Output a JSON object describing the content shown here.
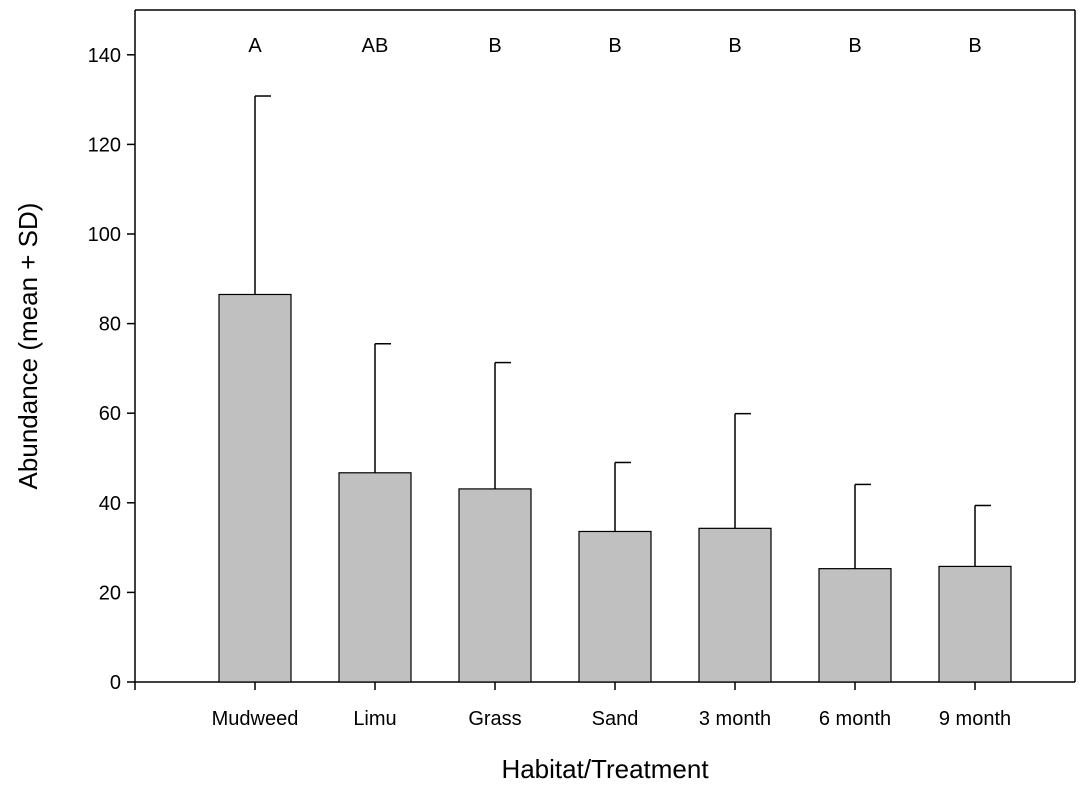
{
  "chart_data": {
    "type": "bar",
    "title": "",
    "xlabel": "Habitat/Treatment",
    "ylabel": "Abundance (mean + SD)",
    "ylim": [
      0,
      150
    ],
    "yticks": [
      0,
      20,
      40,
      60,
      80,
      100,
      120,
      140
    ],
    "grid": false,
    "error_bars": "SD (upper only)",
    "categories": [
      "Mudweed",
      "Limu",
      "Grass",
      "Sand",
      "3 month",
      "6 month",
      "9 month"
    ],
    "values": [
      86.5,
      46.7,
      43.1,
      33.6,
      34.3,
      25.3,
      25.8
    ],
    "sd": [
      44.3,
      28.8,
      28.2,
      15.4,
      25.6,
      18.8,
      13.6
    ],
    "group_letters": [
      "A",
      "AB",
      "B",
      "B",
      "B",
      "B",
      "B"
    ],
    "colors": {
      "bar_fill": "#c0c0c0",
      "bar_stroke": "#000000"
    }
  }
}
